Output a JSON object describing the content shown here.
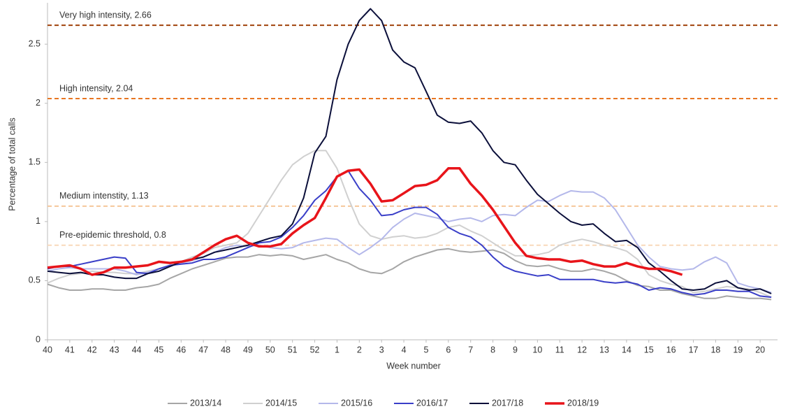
{
  "chart_data": {
    "type": "line",
    "x_label": "Week number",
    "y_label": "Percentage of total calls",
    "categories": [
      "40",
      null,
      "41",
      null,
      "42",
      null,
      "43",
      null,
      "44",
      null,
      "45",
      null,
      "46",
      null,
      "47",
      null,
      "48",
      null,
      "49",
      null,
      "50",
      null,
      "51",
      null,
      "52",
      null,
      "1",
      null,
      "2",
      null,
      "3",
      null,
      "4",
      null,
      "5",
      null,
      "6",
      null,
      "7",
      null,
      "8",
      null,
      "9",
      null,
      "10",
      null,
      "11",
      null,
      "12",
      null,
      "13",
      null,
      "14",
      null,
      "15",
      null,
      "16",
      null,
      "17",
      null,
      "18",
      null,
      "19",
      null,
      "20",
      null
    ],
    "ylim": [
      0,
      2.85
    ],
    "yticks": [
      0,
      0.5,
      1,
      1.5,
      2,
      2.5
    ],
    "reference_lines": [
      {
        "label": "Very high intensity, 2.66",
        "value": 2.66,
        "color": "#a0420a"
      },
      {
        "label": "High intensity, 2.04",
        "value": 2.04,
        "color": "#e87722"
      },
      {
        "label": "Medium intenstity, 1.13",
        "value": 1.13,
        "color": "#f5c79a"
      },
      {
        "label": "Pre-epidemic threshold, 0.8",
        "value": 0.8,
        "color": "#f8d9bb"
      }
    ],
    "series": [
      {
        "name": "2013/14",
        "color": "#a6a6a6",
        "width": 2,
        "values": [
          0.47,
          0.44,
          0.42,
          0.42,
          0.43,
          0.43,
          0.42,
          0.42,
          0.44,
          0.45,
          0.47,
          0.52,
          0.56,
          0.6,
          0.63,
          0.66,
          0.69,
          0.7,
          0.7,
          0.72,
          0.71,
          0.72,
          0.71,
          0.68,
          0.7,
          0.72,
          0.68,
          0.65,
          0.6,
          0.57,
          0.56,
          0.6,
          0.66,
          0.7,
          0.73,
          0.76,
          0.77,
          0.75,
          0.74,
          0.75,
          0.76,
          0.73,
          0.67,
          0.63,
          0.62,
          0.63,
          0.6,
          0.58,
          0.58,
          0.6,
          0.58,
          0.55,
          0.5,
          0.46,
          0.45,
          0.42,
          0.42,
          0.39,
          0.37,
          0.35,
          0.35,
          0.37,
          0.36,
          0.35,
          0.35,
          0.34
        ]
      },
      {
        "name": "2014/15",
        "color": "#d0d0d0",
        "width": 2,
        "values": [
          0.48,
          0.52,
          0.55,
          0.56,
          0.58,
          0.57,
          0.57,
          0.56,
          0.56,
          0.58,
          0.6,
          0.62,
          0.66,
          0.7,
          0.73,
          0.78,
          0.8,
          0.82,
          0.9,
          1.05,
          1.2,
          1.35,
          1.48,
          1.55,
          1.6,
          1.6,
          1.45,
          1.2,
          0.98,
          0.88,
          0.85,
          0.87,
          0.88,
          0.86,
          0.87,
          0.9,
          0.95,
          0.97,
          0.92,
          0.88,
          0.82,
          0.76,
          0.71,
          0.71,
          0.72,
          0.74,
          0.8,
          0.83,
          0.85,
          0.83,
          0.8,
          0.78,
          0.75,
          0.68,
          0.55,
          0.5,
          0.47,
          0.45,
          0.4,
          0.41,
          0.43,
          0.45,
          0.44,
          0.43,
          0.4,
          0.36
        ]
      },
      {
        "name": "2015/16",
        "color": "#b4b8ea",
        "width": 2,
        "values": [
          0.58,
          0.6,
          0.61,
          0.6,
          0.6,
          0.6,
          0.6,
          0.58,
          0.55,
          0.57,
          0.6,
          0.62,
          0.65,
          0.67,
          0.7,
          0.74,
          0.78,
          0.8,
          0.79,
          0.8,
          0.78,
          0.77,
          0.78,
          0.82,
          0.84,
          0.86,
          0.85,
          0.78,
          0.72,
          0.78,
          0.85,
          0.95,
          1.02,
          1.07,
          1.05,
          1.03,
          1.0,
          1.02,
          1.03,
          1.0,
          1.05,
          1.06,
          1.05,
          1.12,
          1.18,
          1.17,
          1.22,
          1.26,
          1.25,
          1.25,
          1.2,
          1.1,
          0.95,
          0.8,
          0.7,
          0.62,
          0.6,
          0.59,
          0.6,
          0.66,
          0.7,
          0.65,
          0.48,
          0.45,
          0.43,
          0.4
        ]
      },
      {
        "name": "2016/17",
        "color": "#3a3fc8",
        "width": 2,
        "values": [
          0.6,
          0.62,
          0.62,
          0.64,
          0.66,
          0.68,
          0.7,
          0.69,
          0.57,
          0.56,
          0.6,
          0.63,
          0.64,
          0.65,
          0.68,
          0.68,
          0.7,
          0.74,
          0.78,
          0.82,
          0.83,
          0.87,
          0.95,
          1.05,
          1.18,
          1.26,
          1.38,
          1.43,
          1.28,
          1.18,
          1.05,
          1.06,
          1.1,
          1.12,
          1.12,
          1.06,
          0.95,
          0.9,
          0.87,
          0.8,
          0.7,
          0.62,
          0.58,
          0.56,
          0.54,
          0.55,
          0.51,
          0.51,
          0.51,
          0.51,
          0.49,
          0.48,
          0.49,
          0.47,
          0.42,
          0.44,
          0.43,
          0.4,
          0.38,
          0.39,
          0.42,
          0.42,
          0.41,
          0.41,
          0.37,
          0.36
        ]
      },
      {
        "name": "2017/18",
        "color": "#0b0f3a",
        "width": 2,
        "values": [
          0.58,
          0.57,
          0.56,
          0.57,
          0.55,
          0.55,
          0.53,
          0.52,
          0.52,
          0.56,
          0.58,
          0.62,
          0.66,
          0.68,
          0.7,
          0.74,
          0.76,
          0.78,
          0.8,
          0.83,
          0.86,
          0.88,
          0.98,
          1.2,
          1.58,
          1.72,
          2.2,
          2.5,
          2.7,
          2.8,
          2.7,
          2.45,
          2.35,
          2.3,
          2.1,
          1.9,
          1.84,
          1.83,
          1.85,
          1.75,
          1.6,
          1.5,
          1.48,
          1.35,
          1.23,
          1.15,
          1.07,
          1.0,
          0.97,
          0.98,
          0.9,
          0.83,
          0.84,
          0.78,
          0.65,
          0.58,
          0.5,
          0.43,
          0.42,
          0.43,
          0.48,
          0.5,
          0.44,
          0.42,
          0.43,
          0.39
        ]
      },
      {
        "name": "2018/19",
        "color": "#e8141a",
        "width": 3.5,
        "values": [
          0.61,
          0.62,
          0.63,
          0.6,
          0.55,
          0.57,
          0.61,
          0.61,
          0.62,
          0.63,
          0.66,
          0.65,
          0.66,
          0.68,
          0.74,
          0.8,
          0.85,
          0.88,
          0.82,
          0.79,
          0.79,
          0.81,
          0.9,
          0.97,
          1.03,
          1.2,
          1.38,
          1.43,
          1.44,
          1.32,
          1.17,
          1.18,
          1.24,
          1.3,
          1.31,
          1.35,
          1.45,
          1.45,
          1.32,
          1.22,
          1.1,
          0.96,
          0.82,
          0.71,
          0.69,
          0.68,
          0.68,
          0.66,
          0.67,
          0.64,
          0.62,
          0.62,
          0.65,
          0.62,
          0.6,
          0.6,
          0.58,
          0.55,
          null,
          null,
          null,
          null,
          null,
          null,
          null,
          null
        ]
      }
    ]
  }
}
